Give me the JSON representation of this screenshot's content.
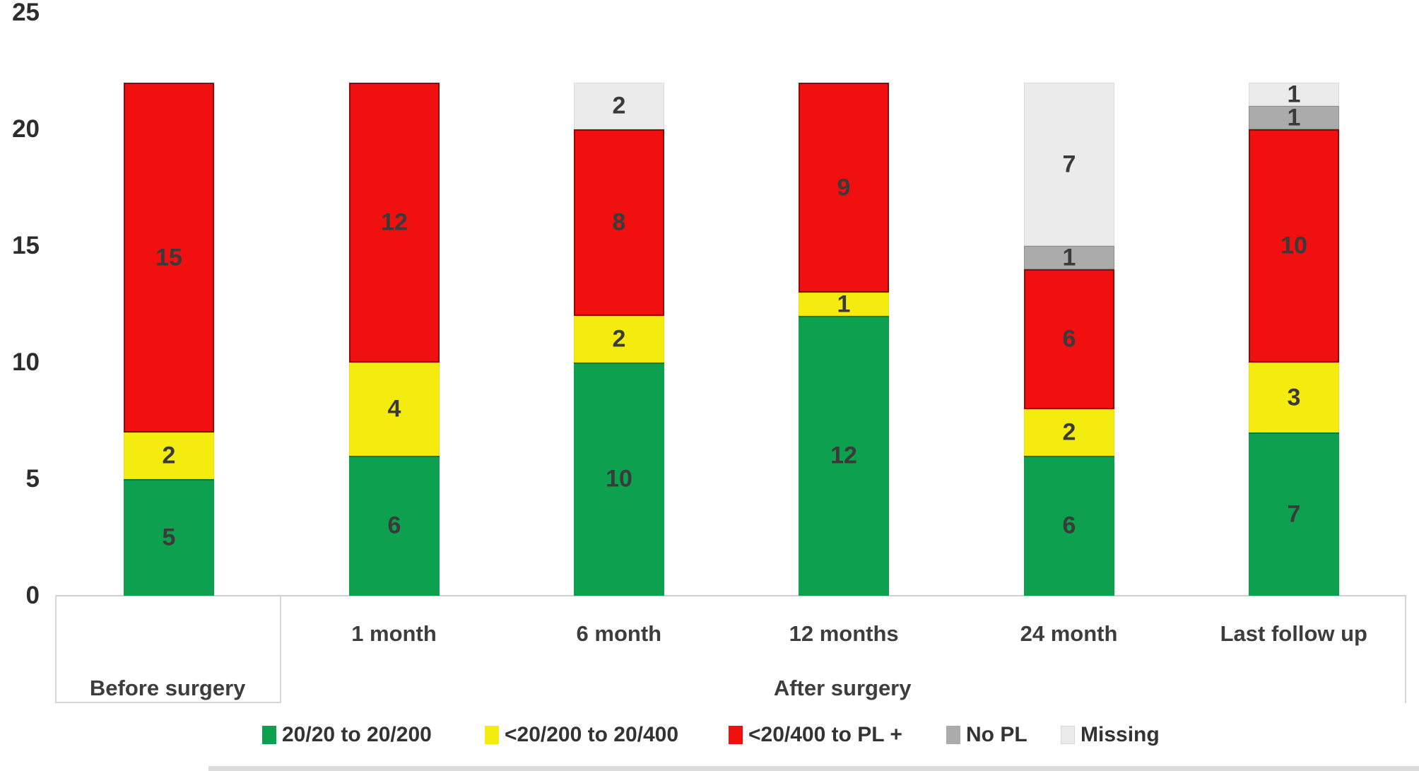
{
  "chart_data": {
    "type": "bar",
    "stacked": true,
    "title": "",
    "xlabel": "",
    "ylabel": "",
    "ylim": [
      0,
      25
    ],
    "yticks": [
      0,
      5,
      10,
      15,
      20,
      25
    ],
    "grid": false,
    "legend_position": "bottom",
    "categories": [
      "Before surgery",
      "1 month",
      "6 month",
      "12 months",
      "24 month",
      "Last follow up"
    ],
    "category_axis_groups": [
      {
        "label": "Before surgery",
        "start": 0,
        "end": 1
      },
      {
        "label": "After surgery",
        "start": 1,
        "end": 6
      }
    ],
    "series": [
      {
        "name": "20/20 to 20/200",
        "color": "#0da14f",
        "values": [
          5,
          6,
          10,
          12,
          6,
          7
        ]
      },
      {
        "name": "<20/200 to 20/400",
        "color": "#f5ec0f",
        "values": [
          2,
          4,
          2,
          1,
          2,
          3
        ]
      },
      {
        "name": "<20/400 to PL +",
        "color": "#f01010",
        "values": [
          15,
          12,
          8,
          9,
          6,
          10
        ]
      },
      {
        "name": "No PL",
        "color": "#ababab",
        "values": [
          0,
          0,
          0,
          0,
          1,
          1
        ]
      },
      {
        "name": "Missing",
        "color": "#ebebeb",
        "values": [
          0,
          0,
          2,
          0,
          7,
          1
        ]
      }
    ],
    "bar_totals": [
      22,
      22,
      22,
      22,
      22,
      22
    ]
  },
  "layout_colors": {
    "axis_line": "#cfcfcf",
    "text": "#3a3a3a",
    "background": "#ffffff"
  }
}
